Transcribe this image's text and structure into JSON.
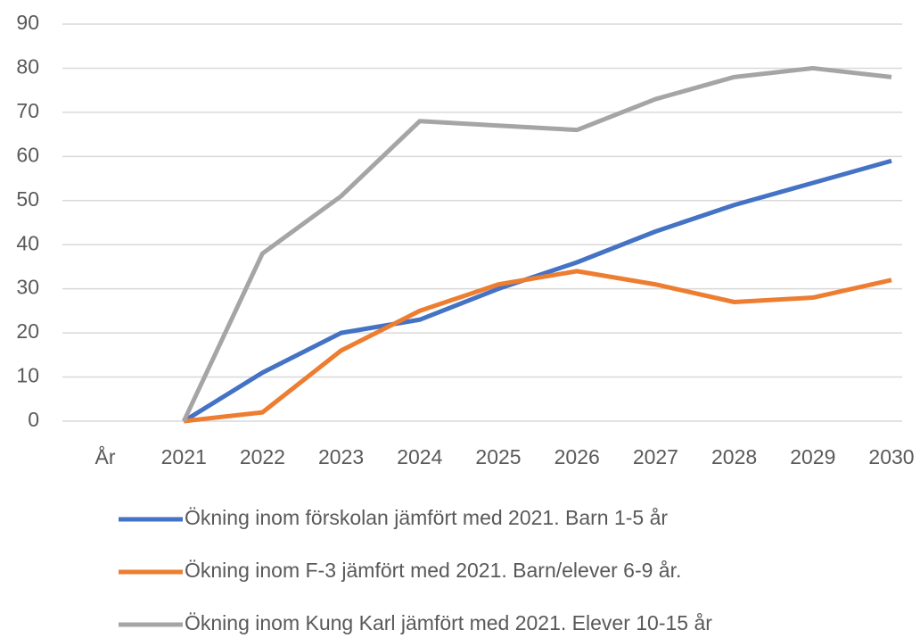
{
  "chart_data": {
    "type": "line",
    "categories": [
      "År",
      "2021",
      "2022",
      "2023",
      "2024",
      "2025",
      "2026",
      "2027",
      "2028",
      "2029",
      "2030"
    ],
    "series": [
      {
        "name": "Ökning inom förskolan jämfört med 2021. Barn 1-5 år",
        "color": "#4472c4",
        "values": [
          null,
          0,
          11,
          20,
          23,
          30,
          36,
          43,
          49,
          54,
          59
        ]
      },
      {
        "name": "Ökning inom F-3 jämfört med 2021. Barn/elever 6-9 år.",
        "color": "#ed7d31",
        "values": [
          null,
          0,
          2,
          16,
          25,
          31,
          34,
          31,
          27,
          28,
          32
        ]
      },
      {
        "name": "Ökning inom Kung Karl jämfört med 2021. Elever 10-15 år",
        "color": "#a5a5a5",
        "values": [
          null,
          0,
          38,
          51,
          68,
          67,
          66,
          73,
          78,
          80,
          78
        ]
      }
    ],
    "ylim": [
      0,
      90
    ],
    "yticks": [
      0,
      10,
      20,
      30,
      40,
      50,
      60,
      70,
      80,
      90
    ],
    "grid": true
  }
}
